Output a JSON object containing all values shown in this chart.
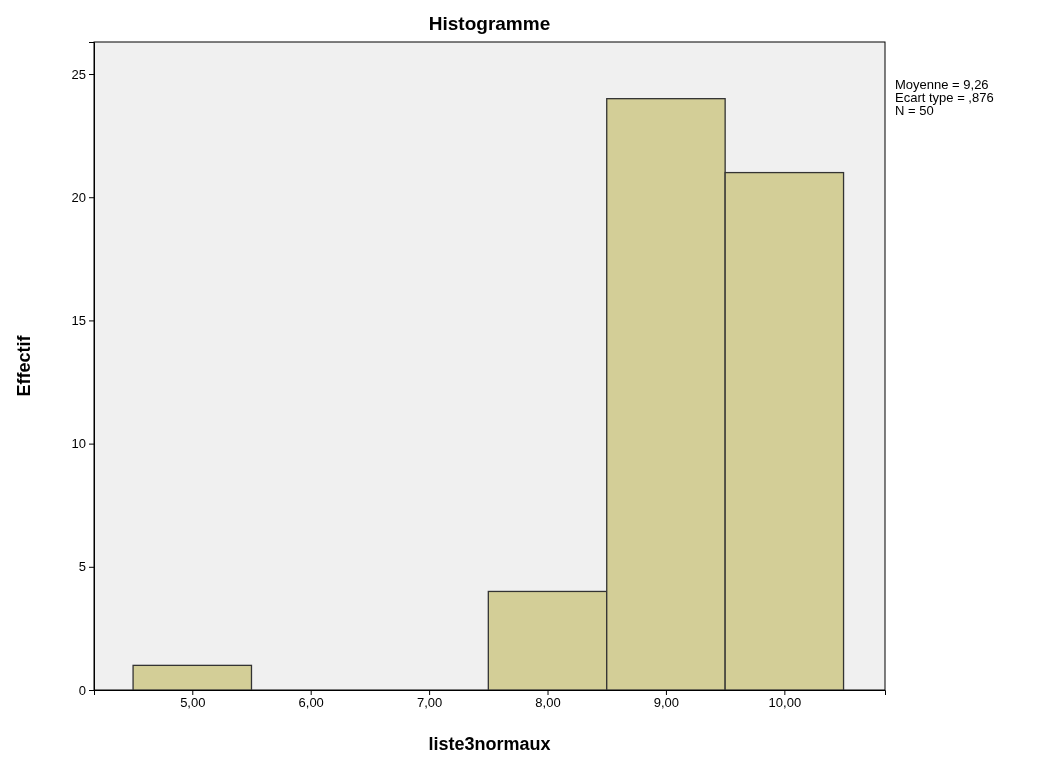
{
  "chart_data": {
    "type": "histogram",
    "title": "Histogramme",
    "xlabel": "liste3normaux",
    "ylabel": "Effectif",
    "bins": [
      4.5,
      5.5,
      6.5,
      7.5,
      8.5,
      9.5,
      10.5
    ],
    "values": [
      1,
      0,
      0,
      4,
      24,
      21
    ],
    "color": "#d3ce97",
    "xlim": [
      4.17,
      10.85
    ],
    "xticks": [
      {
        "value": 5,
        "label": "5,00"
      },
      {
        "value": 6,
        "label": "6,00"
      },
      {
        "value": 7,
        "label": "7,00"
      },
      {
        "value": 8,
        "label": "8,00"
      },
      {
        "value": 9,
        "label": "9,00"
      },
      {
        "value": 10,
        "label": "10,00"
      }
    ],
    "ylim": [
      0,
      26.3
    ],
    "yticks": [
      0,
      5,
      10,
      15,
      20,
      25
    ],
    "grid": false,
    "annotations": [
      "Moyenne = 9,26",
      "Ecart type = ,876",
      "N = 50"
    ]
  }
}
